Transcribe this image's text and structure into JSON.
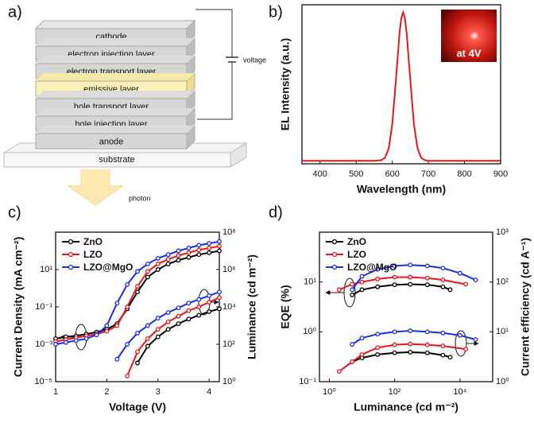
{
  "panel_labels": [
    "a)",
    "b)",
    "c)",
    "d)"
  ],
  "diagram": {
    "layers": [
      "cathode",
      "electron injection layer",
      "electron transport layer",
      "emissive layer",
      "hole transport layer",
      "hole injection layer",
      "anode"
    ],
    "substrate": "substrate",
    "voltage": "voltage",
    "photon": "photon"
  },
  "chart_data": [
    {
      "type": "line",
      "xlabel": "Wavelength (nm)",
      "ylabel": "EL Intensity (a.u.)",
      "annotation": "at 4V",
      "x": [
        350,
        400,
        450,
        500,
        550,
        570,
        580,
        590,
        600,
        610,
        620,
        625,
        630,
        635,
        640,
        650,
        660,
        670,
        680,
        690,
        700,
        750,
        800,
        850,
        900
      ],
      "series": [
        {
          "color": "#e8151b",
          "values": [
            0.02,
            0.02,
            0.02,
            0.02,
            0.02,
            0.024,
            0.04,
            0.1,
            0.26,
            0.55,
            0.86,
            0.96,
            1.0,
            0.96,
            0.86,
            0.55,
            0.26,
            0.1,
            0.04,
            0.024,
            0.02,
            0.02,
            0.02,
            0.02,
            0.02
          ]
        }
      ],
      "xlim": [
        350,
        900
      ],
      "xticks": [
        400,
        500,
        600,
        700,
        800,
        900
      ],
      "ylim": [
        0,
        1.05
      ]
    },
    {
      "type": "line",
      "xlabel": "Voltage (V)",
      "ylabel": "Current Density (mA cm⁻²)",
      "y2label": "Luminance (cd m⁻²)",
      "x": [
        1,
        1.2,
        1.4,
        1.6,
        1.8,
        2,
        2.2,
        2.4,
        2.6,
        2.8,
        3,
        3.2,
        3.4,
        3.6,
        3.8,
        4,
        4.2
      ],
      "series": [
        {
          "name": "ZnO",
          "color": "#000000",
          "values": [
            0.002,
            0.00251,
            0.00282,
            0.00355,
            0.00447,
            0.00631,
            0.0126,
            0.0794,
            0.631,
            3.98,
            10,
            20,
            31.6,
            44.7,
            63.1,
            79.4,
            100
          ],
          "y2_values": [
            null,
            null,
            null,
            null,
            null,
            null,
            null,
            null,
            10,
            79.4,
            251,
            631,
            1259,
            2239,
            3548,
            5623,
            7943
          ]
        },
        {
          "name": "LZO",
          "color": "#e8151b",
          "values": [
            0.00141,
            0.00178,
            0.00224,
            0.00282,
            0.00355,
            0.005,
            0.01,
            0.1,
            1.26,
            7.94,
            20,
            35.5,
            56.2,
            79.4,
            112,
            141,
            178
          ],
          "y2_values": [
            null,
            null,
            null,
            null,
            null,
            null,
            null,
            2.0,
            39.8,
            200,
            631,
            1585,
            3162,
            6310,
            10000,
            17783,
            31623
          ]
        },
        {
          "name": "LZO@MgO",
          "color": "#1a2ee8",
          "values": [
            0.001,
            0.00126,
            0.00158,
            0.002,
            0.00316,
            0.01,
            0.158,
            1.58,
            7.94,
            20,
            39.8,
            63.1,
            100,
            141,
            200,
            251,
            316
          ],
          "y2_values": [
            null,
            null,
            null,
            null,
            null,
            null,
            15.8,
            100,
            398,
            1000,
            2512,
            5012,
            8913,
            15849,
            25119,
            39811,
            63096
          ]
        }
      ],
      "xlim": [
        1,
        4.2
      ],
      "xticks": [
        1,
        2,
        3,
        4
      ],
      "log_y": true,
      "ylim": [
        1e-05,
        1000
      ],
      "yticks": [
        {
          "value": 1e-05,
          "label": "10⁻⁵"
        },
        {
          "value": 0.001,
          "label": "10⁻³"
        },
        {
          "value": 0.1,
          "label": "10⁻¹"
        },
        {
          "value": 10,
          "label": "10¹"
        }
      ],
      "y2lim": [
        1,
        100000000
      ],
      "y2ticks": [
        {
          "value": 1,
          "label": "10⁰"
        },
        {
          "value": 100,
          "label": "10²"
        },
        {
          "value": 10000,
          "label": "10⁴"
        },
        {
          "value": 1000000,
          "label": "10⁶"
        },
        {
          "value": 100000000,
          "label": "10⁸"
        }
      ],
      "markers": true,
      "legend": "upper left"
    },
    {
      "type": "line",
      "xlabel": "Luminance (cd m⁻²)",
      "ylabel": "EQE (%)",
      "y2label": "Current efficiency (cd A⁻¹)",
      "series": [
        {
          "name": "ZnO",
          "color": "#000000",
          "x": [
            5,
            10,
            30,
            100,
            300,
            1000,
            3000,
            5000
          ],
          "values": [
            5.5,
            7,
            8,
            8.8,
            9,
            8.8,
            8,
            7
          ],
          "y2_values": [
            2.5,
            3.0,
            3.5,
            3.8,
            3.9,
            3.8,
            3.4,
            3.1
          ]
        },
        {
          "name": "LZO",
          "color": "#e8151b",
          "x": [
            2,
            5,
            10,
            30,
            100,
            300,
            1000,
            3000,
            15000
          ],
          "values": [
            7,
            9,
            10,
            11.5,
            12.5,
            12.5,
            12,
            11,
            9
          ],
          "y2_values": [
            1.6,
            2.5,
            3.5,
            4.8,
            5.5,
            5.7,
            5.5,
            5.2,
            4.5
          ]
        },
        {
          "name": "LZO@MgO",
          "color": "#1a2ee8",
          "x": [
            5,
            10,
            30,
            100,
            300,
            1000,
            3000,
            10000,
            30000
          ],
          "values": [
            7,
            13,
            18,
            21,
            22,
            21,
            19,
            15,
            11
          ],
          "y2_values": [
            5.6,
            7.5,
            9,
            10,
            10.5,
            10,
            9.5,
            8.5,
            7
          ]
        }
      ],
      "log_x": true,
      "xlim": [
        0.5,
        100000
      ],
      "xticks": [
        {
          "value": 1,
          "label": "10⁰"
        },
        {
          "value": 100,
          "label": "10²"
        },
        {
          "value": 10000,
          "label": "10⁴"
        }
      ],
      "log_y": true,
      "ylim": [
        0.1,
        100
      ],
      "yticks": [
        {
          "value": 0.1,
          "label": "10⁻¹"
        },
        {
          "value": 1,
          "label": "10⁰"
        },
        {
          "value": 10,
          "label": "10¹"
        }
      ],
      "y2lim": [
        1,
        1000
      ],
      "y2ticks": [
        {
          "value": 1,
          "label": "10⁰"
        },
        {
          "value": 10,
          "label": "10¹"
        },
        {
          "value": 100,
          "label": "10²"
        },
        {
          "value": 1000,
          "label": "10³"
        }
      ],
      "markers": true,
      "legend": "upper left"
    }
  ]
}
